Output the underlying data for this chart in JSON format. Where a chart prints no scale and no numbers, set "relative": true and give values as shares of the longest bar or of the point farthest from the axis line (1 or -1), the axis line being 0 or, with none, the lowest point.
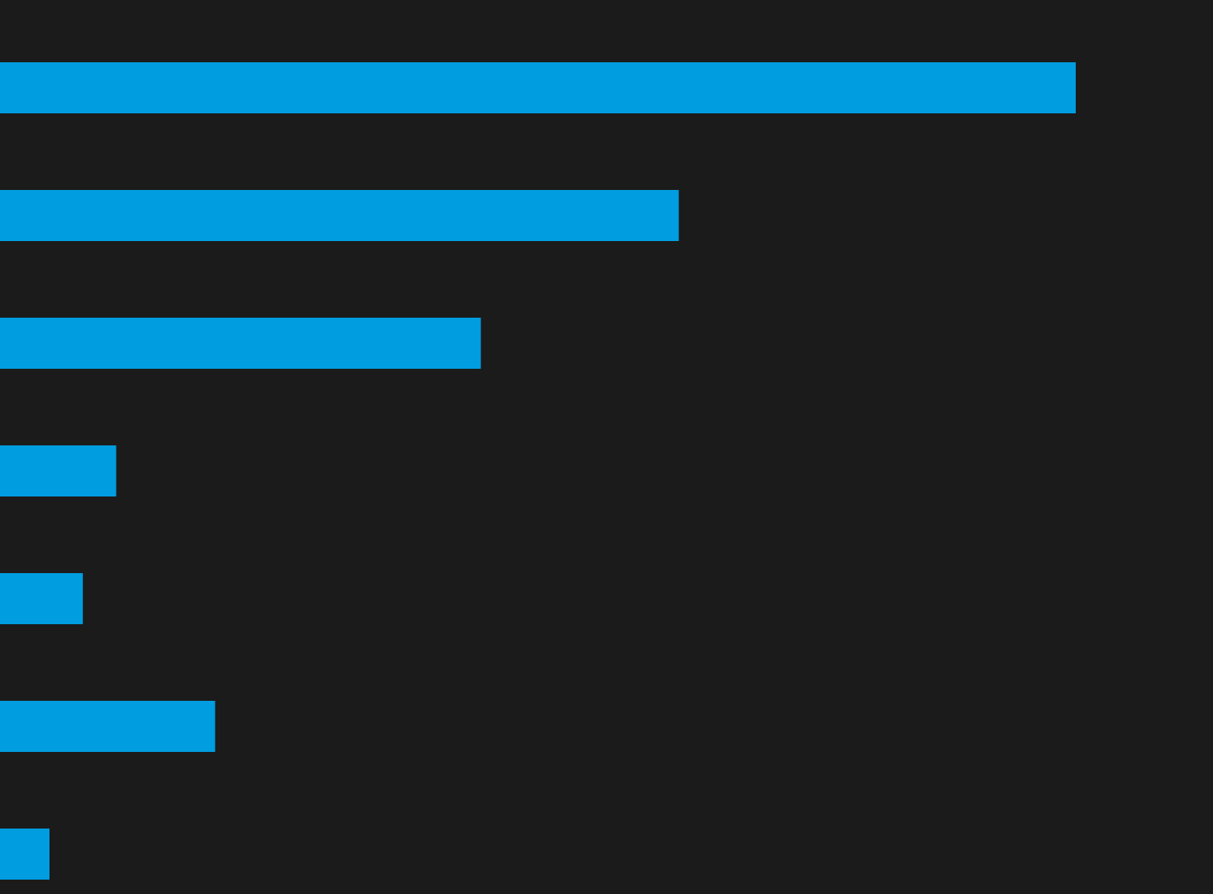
{
  "chart_data": {
    "type": "bar",
    "orientation": "horizontal",
    "relative": true,
    "categories": [
      null,
      null,
      null,
      null,
      null,
      null,
      null
    ],
    "values": [
      1,
      0.631,
      0.447,
      0.108,
      0.077,
      0.2,
      0.046
    ],
    "color": "#009de0"
  }
}
